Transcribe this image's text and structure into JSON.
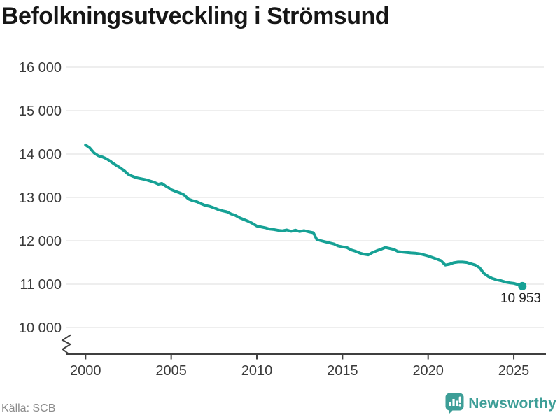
{
  "title": "Befolkningsutveckling i Strömsund",
  "source": "Källa: SCB",
  "logo": {
    "text": "Newsworthy",
    "icon": "newsworthy-speech-bubble-barchart-icon"
  },
  "colors": {
    "line": "#16a195",
    "marker": "#16a195",
    "grid": "#e3e3e3",
    "axis": "#3f3f3f",
    "tick_label": "#3b3b3b",
    "title": "#161616",
    "source": "#8c8c8c",
    "logo": "#3d9e97"
  },
  "chart_data": {
    "type": "line",
    "title": "Befolkningsutveckling i Strömsund",
    "xlabel": "",
    "ylabel": "",
    "xlim": [
      1999.6,
      2026.2
    ],
    "ylim": [
      10000,
      16000
    ],
    "grid": "horizontal",
    "axis_break_at_bottom": true,
    "end_label": "10 953",
    "end_value": 10953,
    "y_axis": {
      "ticks": [
        {
          "value": 16000,
          "label": "16 000"
        },
        {
          "value": 15000,
          "label": "15 000"
        },
        {
          "value": 14000,
          "label": "14 000"
        },
        {
          "value": 13000,
          "label": "13 000"
        },
        {
          "value": 12000,
          "label": "12 000"
        },
        {
          "value": 11000,
          "label": "11 000"
        },
        {
          "value": 10000,
          "label": "10 000"
        }
      ]
    },
    "x_axis": {
      "ticks": [
        {
          "value": 2000,
          "label": "2000"
        },
        {
          "value": 2005,
          "label": "2005"
        },
        {
          "value": 2010,
          "label": "2010"
        },
        {
          "value": 2015,
          "label": "2015"
        },
        {
          "value": 2020,
          "label": "2020"
        },
        {
          "value": 2025,
          "label": "2025"
        }
      ]
    },
    "series": [
      {
        "name": "Strömsund",
        "points": [
          [
            2000.0,
            14210
          ],
          [
            2000.25,
            14140
          ],
          [
            2000.5,
            14025
          ],
          [
            2000.75,
            13960
          ],
          [
            2001.0,
            13930
          ],
          [
            2001.25,
            13885
          ],
          [
            2001.5,
            13820
          ],
          [
            2001.75,
            13750
          ],
          [
            2002.0,
            13690
          ],
          [
            2002.25,
            13620
          ],
          [
            2002.5,
            13530
          ],
          [
            2002.75,
            13485
          ],
          [
            2003.0,
            13450
          ],
          [
            2003.25,
            13430
          ],
          [
            2003.5,
            13410
          ],
          [
            2003.75,
            13380
          ],
          [
            2004.0,
            13350
          ],
          [
            2004.25,
            13305
          ],
          [
            2004.45,
            13325
          ],
          [
            2004.65,
            13270
          ],
          [
            2004.85,
            13225
          ],
          [
            2005.0,
            13180
          ],
          [
            2005.25,
            13140
          ],
          [
            2005.5,
            13105
          ],
          [
            2005.75,
            13060
          ],
          [
            2006.0,
            12965
          ],
          [
            2006.25,
            12925
          ],
          [
            2006.5,
            12900
          ],
          [
            2006.75,
            12855
          ],
          [
            2007.0,
            12815
          ],
          [
            2007.25,
            12795
          ],
          [
            2007.5,
            12760
          ],
          [
            2007.75,
            12720
          ],
          [
            2008.0,
            12690
          ],
          [
            2008.25,
            12670
          ],
          [
            2008.5,
            12620
          ],
          [
            2008.75,
            12585
          ],
          [
            2009.0,
            12530
          ],
          [
            2009.25,
            12490
          ],
          [
            2009.5,
            12450
          ],
          [
            2009.75,
            12400
          ],
          [
            2010.0,
            12340
          ],
          [
            2010.25,
            12320
          ],
          [
            2010.5,
            12300
          ],
          [
            2010.75,
            12270
          ],
          [
            2011.0,
            12260
          ],
          [
            2011.25,
            12240
          ],
          [
            2011.5,
            12230
          ],
          [
            2011.75,
            12250
          ],
          [
            2012.0,
            12220
          ],
          [
            2012.25,
            12245
          ],
          [
            2012.5,
            12215
          ],
          [
            2012.75,
            12235
          ],
          [
            2013.0,
            12210
          ],
          [
            2013.3,
            12185
          ],
          [
            2013.5,
            12030
          ],
          [
            2013.75,
            12000
          ],
          [
            2014.0,
            11975
          ],
          [
            2014.25,
            11950
          ],
          [
            2014.5,
            11925
          ],
          [
            2014.75,
            11880
          ],
          [
            2015.0,
            11860
          ],
          [
            2015.25,
            11845
          ],
          [
            2015.5,
            11790
          ],
          [
            2015.75,
            11760
          ],
          [
            2016.0,
            11720
          ],
          [
            2016.25,
            11690
          ],
          [
            2016.5,
            11675
          ],
          [
            2016.75,
            11730
          ],
          [
            2017.0,
            11770
          ],
          [
            2017.25,
            11805
          ],
          [
            2017.5,
            11845
          ],
          [
            2017.75,
            11825
          ],
          [
            2018.0,
            11800
          ],
          [
            2018.25,
            11750
          ],
          [
            2018.5,
            11740
          ],
          [
            2018.75,
            11730
          ],
          [
            2019.0,
            11720
          ],
          [
            2019.25,
            11715
          ],
          [
            2019.5,
            11700
          ],
          [
            2019.75,
            11675
          ],
          [
            2020.0,
            11650
          ],
          [
            2020.25,
            11615
          ],
          [
            2020.5,
            11580
          ],
          [
            2020.75,
            11540
          ],
          [
            2021.0,
            11440
          ],
          [
            2021.25,
            11460
          ],
          [
            2021.5,
            11495
          ],
          [
            2021.75,
            11510
          ],
          [
            2022.0,
            11510
          ],
          [
            2022.25,
            11500
          ],
          [
            2022.5,
            11470
          ],
          [
            2022.75,
            11440
          ],
          [
            2023.0,
            11380
          ],
          [
            2023.25,
            11250
          ],
          [
            2023.5,
            11180
          ],
          [
            2023.75,
            11130
          ],
          [
            2024.0,
            11100
          ],
          [
            2024.25,
            11080
          ],
          [
            2024.5,
            11050
          ],
          [
            2024.75,
            11030
          ],
          [
            2025.0,
            11020
          ],
          [
            2025.25,
            10990
          ],
          [
            2025.5,
            10953
          ]
        ]
      }
    ]
  }
}
